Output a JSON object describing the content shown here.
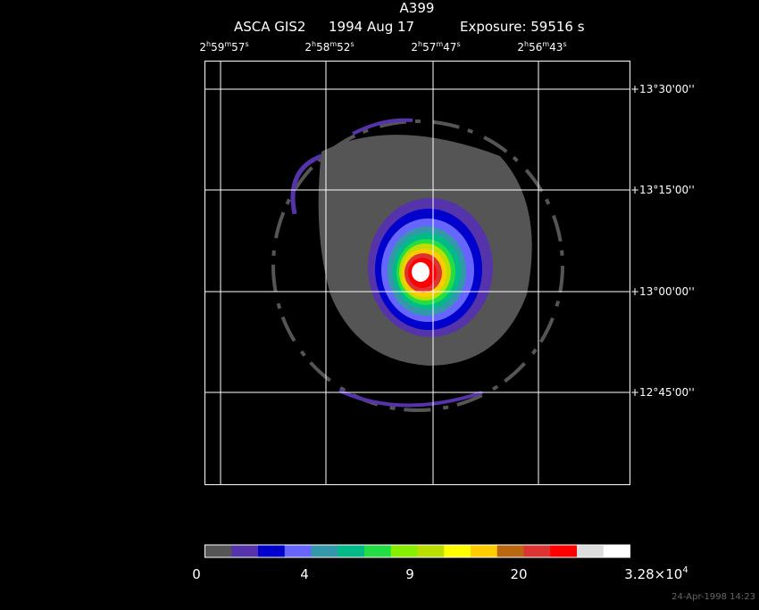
{
  "header": {
    "title": "A399",
    "instrument": "ASCA GIS2",
    "date": "1994 Aug 17",
    "exposure": "Exposure: 59516 s"
  },
  "ra_labels": [
    [
      "2",
      "h",
      "59",
      "m",
      "57",
      "s"
    ],
    [
      "2",
      "h",
      "58",
      "m",
      "52",
      "s"
    ],
    [
      "2",
      "h",
      "57",
      "m",
      "47",
      "s"
    ],
    [
      "2",
      "h",
      "56",
      "m",
      "43",
      "s"
    ]
  ],
  "dec_labels": [
    "+13°30'00''",
    "+13°15'00''",
    "+13°00'00''",
    "+12°45'00''"
  ],
  "colorbar_labels": [
    [
      "0"
    ],
    [
      "4"
    ],
    [
      "9"
    ],
    [
      "20"
    ],
    [
      "3.28×10",
      "4"
    ]
  ],
  "timestamp": "24-Apr-1998 14:23"
}
